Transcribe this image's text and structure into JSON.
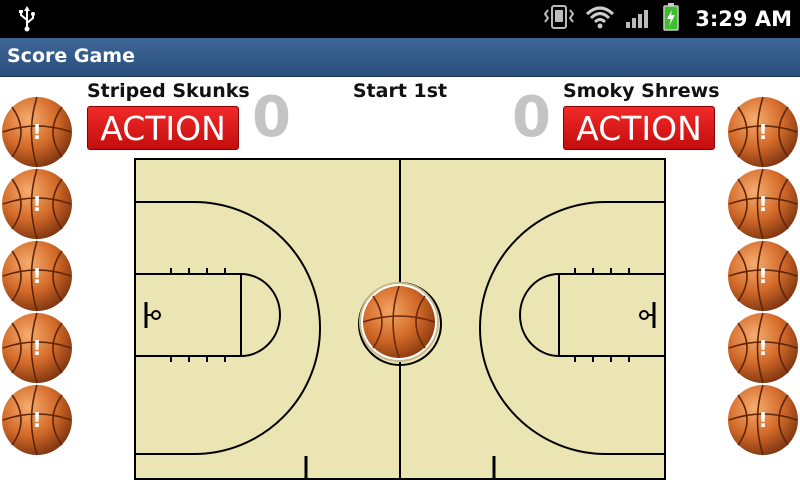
{
  "status_bar": {
    "time": "3:29 AM",
    "icons": [
      "usb-icon",
      "vibrate-icon",
      "wifi-icon",
      "signal-icon",
      "battery-charging-icon"
    ]
  },
  "app": {
    "title": "Score Game"
  },
  "game": {
    "period_label": "Start 1st",
    "home": {
      "name": "Striped Skunks",
      "score": "0",
      "action_label": "ACTION"
    },
    "away": {
      "name": "Smoky Shrews",
      "score": "0",
      "action_label": "ACTION"
    }
  },
  "players": {
    "left": [
      "!",
      "!",
      "!",
      "!",
      "!"
    ],
    "right": [
      "!",
      "!",
      "!",
      "!",
      "!"
    ]
  },
  "colors": {
    "court_fill": "#ebe4b3",
    "court_line": "#000000",
    "ball": "#d9732c",
    "action_red": "#e11b1b",
    "title_bar": "#355b8a",
    "score_gray": "#c4c4c4"
  }
}
